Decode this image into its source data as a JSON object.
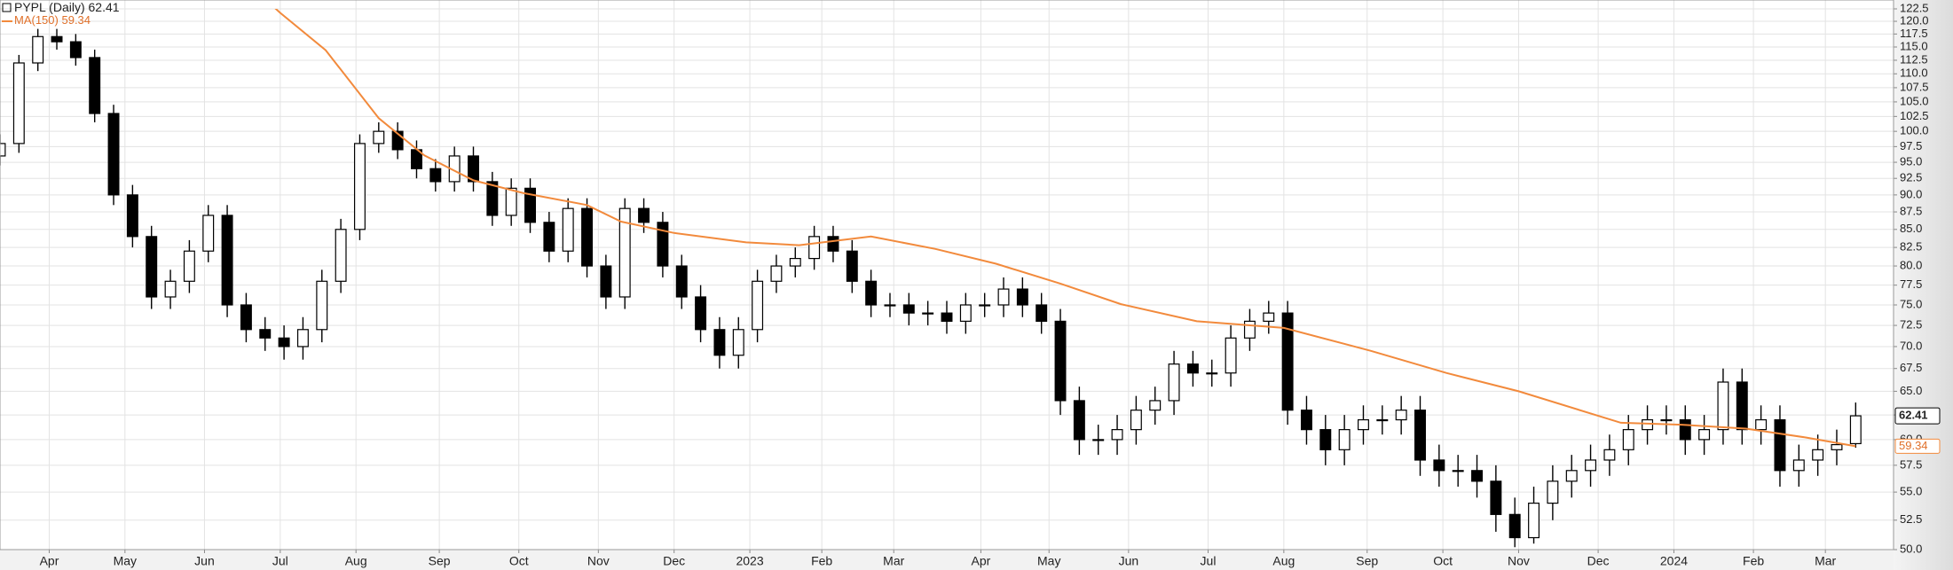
{
  "chart_data": {
    "type": "candlestick",
    "title": "PYPL (Daily)",
    "log_scale": true,
    "grid": true,
    "up_color": "#ffffff",
    "down_color": "#000000",
    "candle_stroke": "#000000",
    "x": [
      0,
      5,
      10,
      15,
      20,
      25,
      30,
      35,
      40,
      45,
      50,
      55,
      60,
      65,
      70,
      75,
      80,
      85,
      90,
      95,
      100,
      105,
      110,
      115,
      120,
      125,
      130,
      135,
      140,
      145,
      150,
      155,
      160,
      165,
      170,
      175,
      180,
      185,
      190,
      195,
      200,
      205,
      210,
      215,
      220,
      225,
      230,
      235,
      240,
      245,
      250,
      255,
      260,
      265,
      270,
      275,
      280,
      285,
      290,
      295,
      300,
      305,
      310,
      315,
      320,
      325,
      330,
      335,
      340,
      345,
      350,
      355,
      360,
      365,
      370,
      375,
      380,
      385,
      390,
      395,
      400,
      405,
      410,
      415,
      420,
      425,
      430,
      435,
      440,
      445,
      450,
      455,
      460,
      465,
      470,
      475,
      480,
      485,
      490
    ],
    "open": [
      96,
      98,
      112,
      117,
      116,
      113,
      103,
      90,
      84,
      76,
      78,
      82,
      87,
      75,
      72,
      71,
      70,
      72,
      78,
      85,
      98,
      100,
      97,
      94,
      92,
      96,
      92,
      87,
      91,
      86,
      82,
      88,
      80,
      76,
      88,
      86,
      80,
      76,
      72,
      69,
      72,
      78,
      80,
      81,
      84,
      82,
      78,
      75,
      75,
      74,
      74,
      73,
      75,
      75,
      77,
      75,
      73,
      64,
      60,
      60,
      61,
      63,
      64,
      68,
      67,
      67,
      71,
      73,
      74,
      63,
      61,
      59,
      61,
      62,
      62,
      63,
      58,
      57,
      57,
      56,
      53,
      51,
      54,
      56,
      57,
      58,
      59,
      61,
      62,
      62,
      60,
      61,
      66,
      61,
      62,
      57,
      58,
      59,
      59.6
    ],
    "high": [
      99.5,
      113.5,
      118.5,
      118.5,
      117.5,
      114.5,
      104.5,
      91.5,
      85.5,
      79.5,
      83.5,
      88.5,
      88.5,
      76.5,
      73.5,
      72.5,
      73.5,
      79.5,
      86.5,
      99.5,
      101.5,
      101.5,
      98.5,
      95.5,
      97.5,
      97.5,
      93.5,
      92.5,
      92.5,
      87.5,
      89.5,
      89.5,
      81.5,
      89.5,
      89.5,
      87.5,
      81.5,
      77.5,
      73.5,
      73.5,
      79.5,
      81.5,
      82.5,
      85.5,
      85.5,
      83.5,
      79.5,
      76.5,
      76.5,
      75.5,
      75.5,
      76.5,
      76.5,
      78.5,
      78.5,
      76.5,
      74.5,
      65.5,
      61.5,
      62.5,
      64.5,
      65.5,
      69.5,
      69.5,
      68.5,
      72.5,
      74.5,
      75.5,
      75.5,
      64.5,
      62.5,
      62.5,
      63.5,
      63.5,
      64.5,
      64.5,
      59.5,
      58.5,
      58.5,
      57.5,
      54.5,
      55.5,
      57.5,
      58.5,
      59.5,
      60.5,
      62.5,
      63.5,
      63.5,
      63.5,
      62.5,
      67.5,
      67.5,
      63.5,
      63.5,
      59.5,
      60.5,
      61,
      63.8
    ],
    "low": [
      94.5,
      96.5,
      110.5,
      114.5,
      111.5,
      101.5,
      88.5,
      82.5,
      74.5,
      74.5,
      76.5,
      80.5,
      73.5,
      70.5,
      69.5,
      68.5,
      68.5,
      70.5,
      76.5,
      83.5,
      96.5,
      95.5,
      92.5,
      90.5,
      90.5,
      90.5,
      85.5,
      85.5,
      84.5,
      80.5,
      80.5,
      78.5,
      74.5,
      74.5,
      84.5,
      78.5,
      74.5,
      70.5,
      67.5,
      67.5,
      70.5,
      76.5,
      78.5,
      79.5,
      80.5,
      76.5,
      73.5,
      73.5,
      72.5,
      72.5,
      71.5,
      71.5,
      73.5,
      73.5,
      73.5,
      71.5,
      62.5,
      58.5,
      58.5,
      58.5,
      59.5,
      61.5,
      62.5,
      65.5,
      65.5,
      65.5,
      69.5,
      71.5,
      61.5,
      59.5,
      57.5,
      57.5,
      59.5,
      60.5,
      60.5,
      56.5,
      55.5,
      55.5,
      54.5,
      51.5,
      50.2,
      50.5,
      52.5,
      54.5,
      55.5,
      56.5,
      57.5,
      59.5,
      60.5,
      58.5,
      58.5,
      59.5,
      59.5,
      59.5,
      55.5,
      55.5,
      56.5,
      57.5,
      59.2
    ],
    "close": [
      98,
      112,
      117,
      116,
      113,
      103,
      90,
      84,
      76,
      78,
      82,
      87,
      75,
      72,
      71,
      70,
      72,
      78,
      85,
      98,
      100,
      97,
      94,
      92,
      96,
      92,
      87,
      91,
      86,
      82,
      88,
      80,
      76,
      88,
      86,
      80,
      76,
      72,
      69,
      72,
      78,
      80,
      81,
      84,
      82,
      78,
      75,
      75,
      74,
      74,
      73,
      75,
      75,
      77,
      75,
      73,
      64,
      60,
      60,
      61,
      63,
      64,
      68,
      67,
      67,
      71,
      73,
      74,
      63,
      61,
      59,
      61,
      62,
      62,
      63,
      58,
      57,
      57,
      56,
      53,
      51,
      54,
      56,
      57,
      58,
      59,
      61,
      62,
      62,
      60,
      61,
      66,
      61,
      62,
      57,
      58,
      59,
      59.5,
      62.41
    ],
    "series": [
      {
        "name": "MA(150)",
        "color": "#f28a3c",
        "x": [
          70,
          74,
          86,
          100,
          112,
          125,
          138,
          155,
          164,
          178,
          197,
          211,
          230,
          247,
          263,
          280,
          296,
          316,
          339,
          362,
          382,
          401,
          428,
          444,
          461,
          477,
          490
        ],
        "values": [
          124.5,
          121.7,
          114.4,
          102.2,
          96.1,
          92.2,
          90.3,
          88.5,
          86.1,
          84.5,
          83.2,
          82.8,
          84.0,
          82.3,
          80.3,
          77.7,
          75.1,
          73.0,
          72.2,
          69.5,
          67.0,
          65.0,
          61.7,
          61.5,
          61.1,
          60.2,
          59.34
        ]
      }
    ],
    "xlim": [
      0,
      500
    ],
    "xticks": [
      {
        "value": 13,
        "label": "Apr"
      },
      {
        "value": 33,
        "label": "May"
      },
      {
        "value": 54,
        "label": "Jun"
      },
      {
        "value": 74,
        "label": "Jul"
      },
      {
        "value": 94,
        "label": "Aug"
      },
      {
        "value": 116,
        "label": "Sep"
      },
      {
        "value": 137,
        "label": "Oct"
      },
      {
        "value": 158,
        "label": "Nov"
      },
      {
        "value": 178,
        "label": "Dec"
      },
      {
        "value": 198,
        "label": "2023"
      },
      {
        "value": 217,
        "label": "Feb"
      },
      {
        "value": 236,
        "label": "Mar"
      },
      {
        "value": 259,
        "label": "Apr"
      },
      {
        "value": 277,
        "label": "May"
      },
      {
        "value": 298,
        "label": "Jun"
      },
      {
        "value": 319,
        "label": "Jul"
      },
      {
        "value": 339,
        "label": "Aug"
      },
      {
        "value": 361,
        "label": "Sep"
      },
      {
        "value": 381,
        "label": "Oct"
      },
      {
        "value": 401,
        "label": "Nov"
      },
      {
        "value": 422,
        "label": "Dec"
      },
      {
        "value": 442,
        "label": "2024"
      },
      {
        "value": 463,
        "label": "Feb"
      },
      {
        "value": 482,
        "label": "Mar"
      }
    ],
    "ylim": [
      50,
      122.5
    ],
    "yticks": [
      {
        "value": 50,
        "label": "50.0"
      },
      52.5,
      {
        "value": 55,
        "label": "55.0"
      },
      57.5,
      {
        "value": 60,
        "label": "60.0"
      },
      62.5,
      {
        "value": 65,
        "label": "65.0"
      },
      67.5,
      {
        "value": 70,
        "label": "70.0"
      },
      72.5,
      {
        "value": 75,
        "label": "75.0"
      },
      77.5,
      {
        "value": 80,
        "label": "80.0"
      },
      82.5,
      {
        "value": 85,
        "label": "85.0"
      },
      87.5,
      {
        "value": 90,
        "label": "90.0"
      },
      92.5,
      {
        "value": 95,
        "label": "95.0"
      },
      97.5,
      {
        "value": 100,
        "label": "100.0"
      },
      102.5,
      {
        "value": 105,
        "label": "105.0"
      },
      107.5,
      {
        "value": 110,
        "label": "110.0"
      },
      112.5,
      {
        "value": 115,
        "label": "115.0"
      },
      117.5,
      {
        "value": 120,
        "label": "120.0"
      },
      122.5
    ]
  }
}
